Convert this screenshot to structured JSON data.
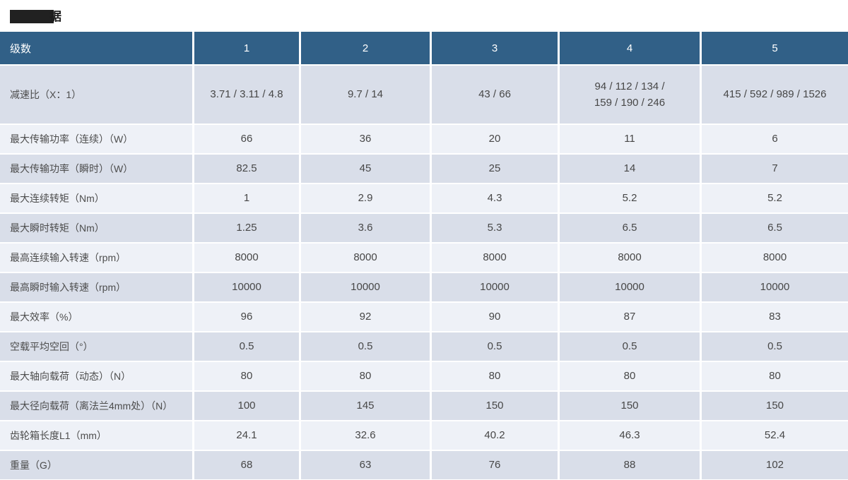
{
  "title": {
    "redacted": true,
    "visible_char": "据",
    "note_full_title_partially_hidden": "技术数据"
  },
  "colors": {
    "header_bg": "#316087",
    "header_text": "#ffffff",
    "row_dark_bg": "#d9dee9",
    "row_light_bg": "#eef1f7",
    "redaction_box": "#212121",
    "body_text": "#474747"
  },
  "table": {
    "col_headers": [
      "级数",
      "1",
      "2",
      "3",
      "4",
      "5"
    ],
    "rows": [
      {
        "label": "减速比（X：1）",
        "values": [
          "3.71 / 3.11 / 4.8",
          "9.7 / 14",
          "43 / 66",
          "94 / 112 / 134 /\n159 / 190 / 246",
          "415 / 592 / 989 / 1526"
        ]
      },
      {
        "label": "最大传输功率（连续）（W）",
        "values": [
          "66",
          "36",
          "20",
          "11",
          "6"
        ]
      },
      {
        "label": "最大传输功率（瞬时）（W）",
        "values": [
          "82.5",
          "45",
          "25",
          "14",
          "7"
        ]
      },
      {
        "label": "最大连续转矩（Nm）",
        "values": [
          "1",
          "2.9",
          "4.3",
          "5.2",
          "5.2"
        ]
      },
      {
        "label": "最大瞬时转矩（Nm）",
        "values": [
          "1.25",
          "3.6",
          "5.3",
          "6.5",
          "6.5"
        ]
      },
      {
        "label": "最高连续输入转速（rpm）",
        "values": [
          "8000",
          "8000",
          "8000",
          "8000",
          "8000"
        ]
      },
      {
        "label": "最高瞬时输入转速（rpm）",
        "values": [
          "10000",
          "10000",
          "10000",
          "10000",
          "10000"
        ]
      },
      {
        "label": "最大效率（%）",
        "values": [
          "96",
          "92",
          "90",
          "87",
          "83"
        ]
      },
      {
        "label": "空载平均空回（°）",
        "values": [
          "0.5",
          "0.5",
          "0.5",
          "0.5",
          "0.5"
        ]
      },
      {
        "label": "最大轴向载荷（动态）（N）",
        "values": [
          "80",
          "80",
          "80",
          "80",
          "80"
        ]
      },
      {
        "label": "最大径向载荷（离法兰4mm处）（N）",
        "values": [
          "100",
          "145",
          "150",
          "150",
          "150"
        ]
      },
      {
        "label": "齿轮箱长度L1（mm）",
        "values": [
          "24.1",
          "32.6",
          "40.2",
          "46.3",
          "52.4"
        ]
      },
      {
        "label": "重量（G）",
        "values": [
          "68",
          "63",
          "76",
          "88",
          "102"
        ]
      }
    ]
  },
  "chart_data": {
    "type": "table",
    "title": "技术数据（部分被遮挡）",
    "columns": [
      "级数",
      "1",
      "2",
      "3",
      "4",
      "5"
    ],
    "rows": [
      [
        "减速比（X：1）",
        "3.71 / 3.11 / 4.8",
        "9.7 / 14",
        "43 / 66",
        "94 / 112 / 134 / 159 / 190 / 246",
        "415 / 592 / 989 / 1526"
      ],
      [
        "最大传输功率（连续）（W）",
        66,
        36,
        20,
        11,
        6
      ],
      [
        "最大传输功率（瞬时）（W）",
        82.5,
        45,
        25,
        14,
        7
      ],
      [
        "最大连续转矩（Nm）",
        1,
        2.9,
        4.3,
        5.2,
        5.2
      ],
      [
        "最大瞬时转矩（Nm）",
        1.25,
        3.6,
        5.3,
        6.5,
        6.5
      ],
      [
        "最高连续输入转速（rpm）",
        8000,
        8000,
        8000,
        8000,
        8000
      ],
      [
        "最高瞬时输入转速（rpm）",
        10000,
        10000,
        10000,
        10000,
        10000
      ],
      [
        "最大效率（%）",
        96,
        92,
        90,
        87,
        83
      ],
      [
        "空载平均空回（°）",
        0.5,
        0.5,
        0.5,
        0.5,
        0.5
      ],
      [
        "最大轴向载荷（动态）（N）",
        80,
        80,
        80,
        80,
        80
      ],
      [
        "最大径向载荷（离法兰4mm处）（N）",
        100,
        145,
        150,
        150,
        150
      ],
      [
        "齿轮箱长度L1（mm）",
        24.1,
        32.6,
        40.2,
        46.3,
        52.4
      ],
      [
        "重量（G）",
        68,
        63,
        76,
        88,
        102
      ]
    ]
  }
}
